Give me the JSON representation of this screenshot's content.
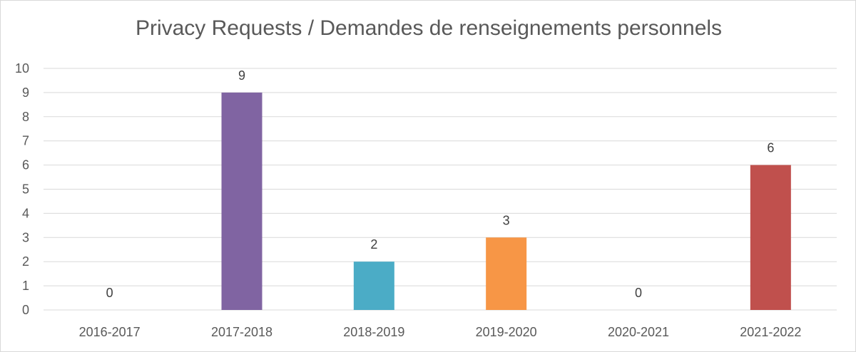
{
  "chart_data": {
    "type": "bar",
    "title": "Privacy Requests / Demandes de renseignements personnels",
    "categories": [
      "2016-2017",
      "2017-2018",
      "2018-2019",
      "2019-2020",
      "2020-2021",
      "2021-2022"
    ],
    "values": [
      0,
      9,
      2,
      3,
      0,
      6
    ],
    "bar_colors": [
      "#8064a2",
      "#8064a2",
      "#4bacc6",
      "#f79646",
      "#c0504d",
      "#c0504d"
    ],
    "ylim": [
      0,
      10
    ],
    "yticks": [
      0,
      1,
      2,
      3,
      4,
      5,
      6,
      7,
      8,
      9,
      10
    ],
    "grid": true,
    "legend": "none",
    "data_labels": true
  }
}
